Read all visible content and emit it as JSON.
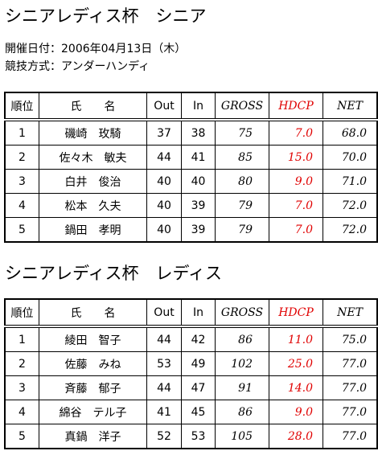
{
  "sections": [
    {
      "title": "シニアレディス杯　シニア",
      "info": [
        "開催日付：2006年04月13日（木）",
        "競技方式：アンダーハンディ"
      ],
      "table": {
        "header": [
          "順位",
          "氏　　名",
          "Out",
          "In",
          "GROSS",
          "HDCP",
          "NET"
        ],
        "rows": [
          [
            "1",
            "磯崎　玫騎",
            "37",
            "38",
            "75",
            "7.0",
            "68.0"
          ],
          [
            "2",
            "佐々木　敏夫",
            "44",
            "41",
            "85",
            "15.0",
            "70.0"
          ],
          [
            "3",
            "白井　俊治",
            "40",
            "40",
            "80",
            "9.0",
            "71.0"
          ],
          [
            "4",
            "松本　久夫",
            "40",
            "39",
            "79",
            "7.0",
            "72.0"
          ],
          [
            "5",
            "鍋田　孝明",
            "40",
            "39",
            "79",
            "7.0",
            "72.0"
          ]
        ]
      }
    },
    {
      "title": "シニアレディス杯　レディス",
      "table": {
        "header": [
          "順位",
          "氏　　名",
          "Out",
          "In",
          "GROSS",
          "HDCP",
          "NET"
        ],
        "rows": [
          [
            "1",
            "綾田　智子",
            "44",
            "42",
            "86",
            "11.0",
            "75.0"
          ],
          [
            "2",
            "佐藤　みね",
            "53",
            "49",
            "102",
            "25.0",
            "77.0"
          ],
          [
            "3",
            "斉藤　郁子",
            "44",
            "47",
            "91",
            "14.0",
            "77.0"
          ],
          [
            "4",
            "綿谷　テル子",
            "41",
            "45",
            "86",
            "9.0",
            "77.0"
          ],
          [
            "5",
            "真鍋　洋子",
            "52",
            "53",
            "105",
            "28.0",
            "77.0"
          ]
        ]
      }
    }
  ]
}
